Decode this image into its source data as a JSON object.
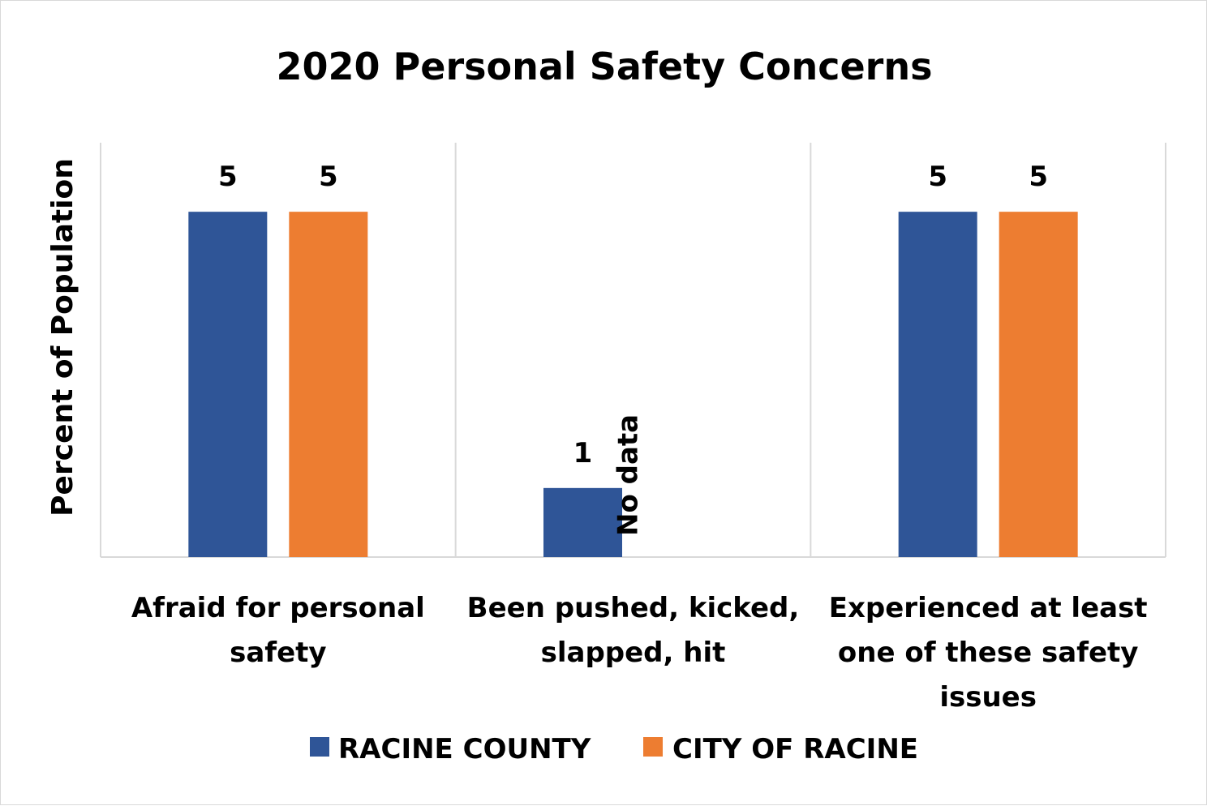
{
  "chart_data": {
    "type": "bar",
    "title": "2020 Personal Safety Concerns",
    "ylabel": "Percent of Population",
    "xlabel": "",
    "categories": [
      [
        "Afraid for personal",
        "safety"
      ],
      [
        "Been pushed, kicked,",
        "slapped, hit"
      ],
      [
        "Experienced at least",
        "one of these safety",
        "issues"
      ]
    ],
    "series": [
      {
        "name": "RACINE COUNTY",
        "color": "#2f5597",
        "values": [
          5,
          1,
          5
        ],
        "labels": [
          "5",
          "1",
          "5"
        ]
      },
      {
        "name": "CITY OF RACINE",
        "color": "#ed7d31",
        "values": [
          5,
          null,
          5
        ],
        "labels": [
          "5",
          "No data",
          "5"
        ]
      }
    ],
    "ylim": [
      0,
      6
    ],
    "grid": false,
    "legend": "bottom"
  }
}
